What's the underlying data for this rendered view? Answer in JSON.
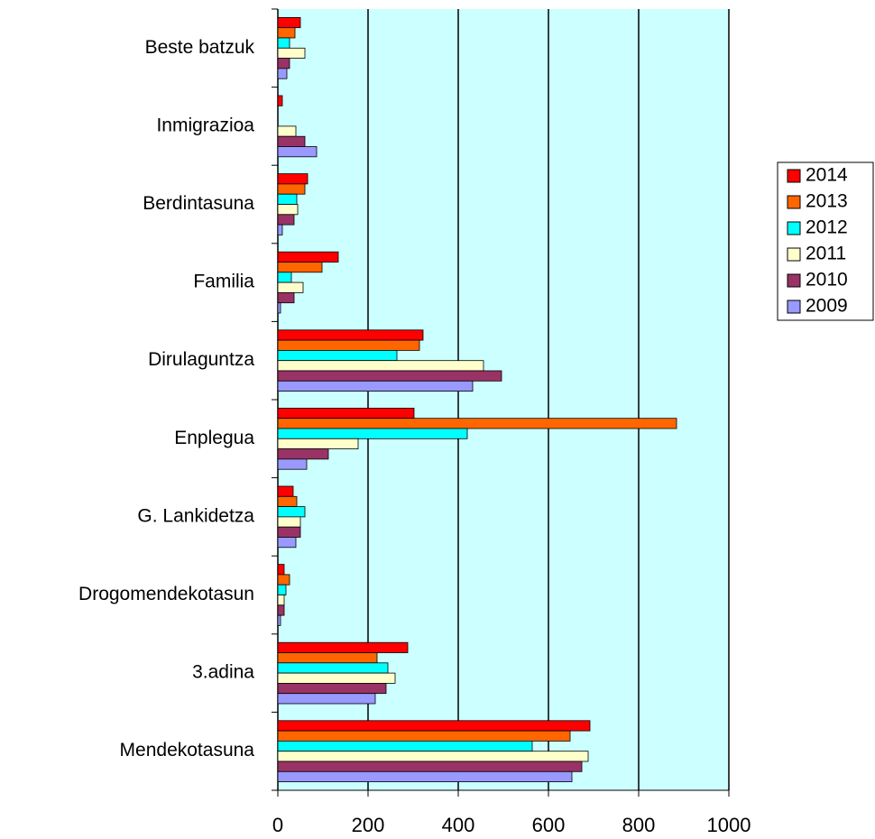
{
  "chart_data": {
    "type": "hbar",
    "categories": [
      "Mendekotasuna",
      "3.adina",
      "Drogomendekotasun",
      "G. Lankidetza",
      "Enplegua",
      "Dirulaguntza",
      "Familia",
      "Berdintasuna",
      "Inmigrazioa",
      "Beste batzuk"
    ],
    "series": [
      {
        "name": "2014",
        "color": "#ff0000",
        "values": [
          692,
          288,
          14,
          34,
          302,
          322,
          134,
          66,
          10,
          50
        ]
      },
      {
        "name": "2013",
        "color": "#ff6600",
        "values": [
          648,
          220,
          26,
          42,
          884,
          314,
          98,
          60,
          0,
          38
        ]
      },
      {
        "name": "2012",
        "color": "#00ffff",
        "values": [
          564,
          244,
          18,
          60,
          420,
          264,
          30,
          42,
          0,
          26
        ]
      },
      {
        "name": "2011",
        "color": "#ffffcc",
        "values": [
          688,
          260,
          14,
          50,
          178,
          456,
          56,
          44,
          40,
          60
        ]
      },
      {
        "name": "2010",
        "color": "#993366",
        "values": [
          674,
          240,
          14,
          50,
          112,
          496,
          36,
          36,
          60,
          26
        ]
      },
      {
        "name": "2009",
        "color": "#9999ff",
        "values": [
          652,
          216,
          6,
          40,
          64,
          432,
          6,
          10,
          86,
          20
        ]
      }
    ],
    "xlim": [
      0,
      1000
    ],
    "xticks": [
      0,
      200,
      400,
      600,
      800,
      1000
    ],
    "grid": true,
    "legend": "right",
    "background": "#ccffff"
  }
}
